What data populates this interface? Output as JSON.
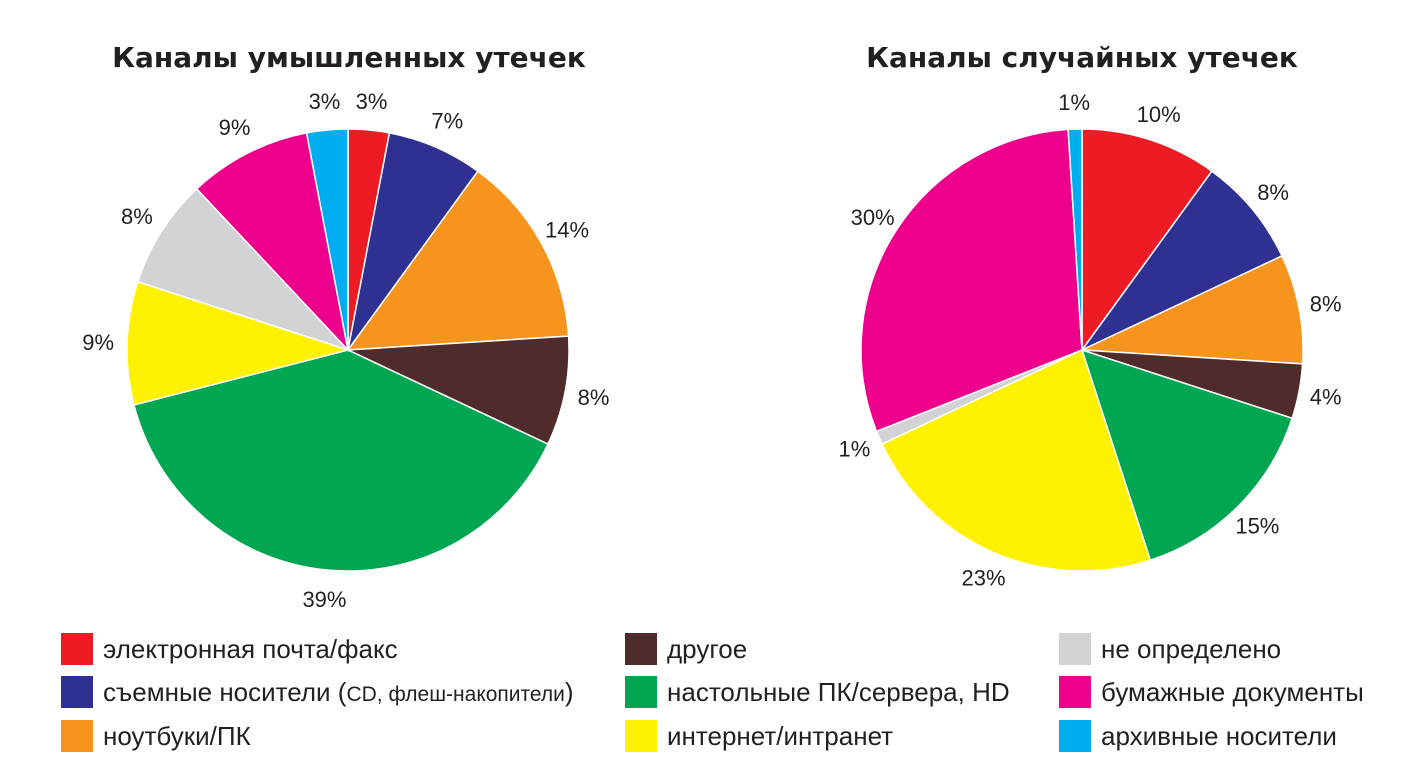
{
  "chart_data": [
    {
      "type": "pie",
      "title": "Каналы умышленных утечек",
      "slices": [
        {
          "name": "электронная почта/факс",
          "value": 3,
          "label": "3%",
          "color": "#ed1c24"
        },
        {
          "name": "съемные носители",
          "value": 7,
          "label": "7%",
          "color": "#2e3192"
        },
        {
          "name": "ноутбуки/ПК",
          "value": 14,
          "label": "14%",
          "color": "#f7941d"
        },
        {
          "name": "другое",
          "value": 8,
          "label": "8%",
          "color": "#4f2c2b"
        },
        {
          "name": "настольные ПК/сервера, HD",
          "value": 39,
          "label": "39%",
          "color": "#00a651"
        },
        {
          "name": "интернет/интранет",
          "value": 9,
          "label": "9%",
          "color": "#fff200"
        },
        {
          "name": "не определено",
          "value": 8,
          "label": "8%",
          "color": "#d1d3d4"
        },
        {
          "name": "бумажные документы",
          "value": 9,
          "label": "9%",
          "color": "#ec008c"
        },
        {
          "name": "архивные носители",
          "value": 3,
          "label": "3%",
          "color": "#00aeef"
        }
      ]
    },
    {
      "type": "pie",
      "title": "Каналы случайных утечек",
      "slices": [
        {
          "name": "электронная почта/факс",
          "value": 10,
          "label": "10%",
          "color": "#ed1c24"
        },
        {
          "name": "съемные носители",
          "value": 8,
          "label": "8%",
          "color": "#2e3192"
        },
        {
          "name": "ноутбуки/ПК",
          "value": 8,
          "label": "8%",
          "color": "#f7941d"
        },
        {
          "name": "другое",
          "value": 4,
          "label": "4%",
          "color": "#4f2c2b"
        },
        {
          "name": "настольные ПК/сервера, HD",
          "value": 15,
          "label": "15%",
          "color": "#00a651"
        },
        {
          "name": "интернет/интранет",
          "value": 23,
          "label": "23%",
          "color": "#fff200"
        },
        {
          "name": "не определено",
          "value": 1,
          "label": "1%",
          "color": "#d1d3d4"
        },
        {
          "name": "бумажные документы",
          "value": 30,
          "label": "30%",
          "color": "#ec008c"
        },
        {
          "name": "архивные носители",
          "value": 1,
          "label": "1%",
          "color": "#00aeef"
        }
      ]
    }
  ],
  "legend": [
    {
      "label": "электронная почта/факс",
      "color": "#ed1c24"
    },
    {
      "label": "съемные носители (",
      "note": "CD, флеш-накопители",
      "suffix": ")",
      "color": "#2e3192"
    },
    {
      "label": "ноутбуки/ПК",
      "color": "#f7941d"
    },
    {
      "label": "другое",
      "color": "#4f2c2b"
    },
    {
      "label": "настольные ПК/сервера, HD",
      "color": "#00a651"
    },
    {
      "label": "интернет/интранет",
      "color": "#fff200"
    },
    {
      "label": "не определено",
      "color": "#d1d3d4"
    },
    {
      "label": "бумажные документы",
      "color": "#ec008c"
    },
    {
      "label": "архивные носители",
      "color": "#00aeef"
    }
  ]
}
